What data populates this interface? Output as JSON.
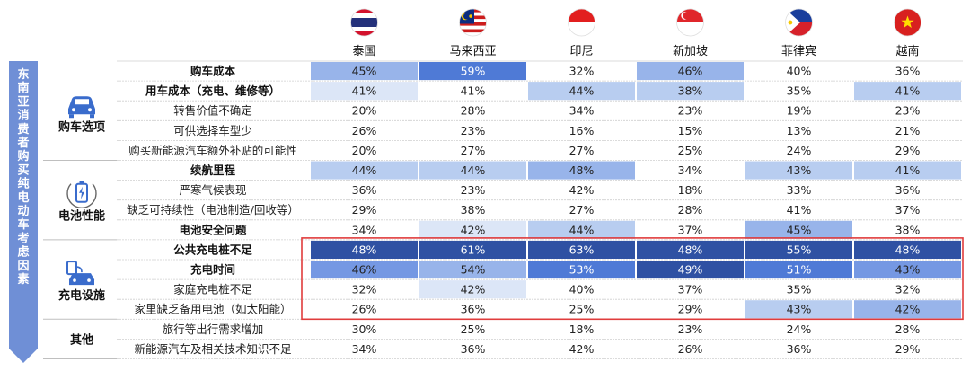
{
  "chart_data": {
    "type": "heatmap",
    "side_title": "东南亚消费者购买纯电动车考虑因素",
    "columns": [
      "泰国",
      "马来西亚",
      "印尼",
      "新加坡",
      "菲律宾",
      "越南"
    ],
    "flags": [
      "thailand-flag",
      "malaysia-flag",
      "indonesia-flag",
      "singapore-flag",
      "philippines-flag",
      "vietnam-flag"
    ],
    "categories": [
      {
        "name": "购车选项",
        "icon": "car-icon",
        "rows": [
          0,
          4
        ]
      },
      {
        "name": "电池性能",
        "icon": "battery-icon",
        "rows": [
          5,
          8
        ]
      },
      {
        "name": "充电设施",
        "icon": "charging-car-icon",
        "rows": [
          9,
          12
        ]
      },
      {
        "name": "其他",
        "icon": "",
        "rows": [
          13,
          14
        ]
      }
    ],
    "rows": [
      {
        "label": "购车成本",
        "bold": true,
        "values": [
          45,
          59,
          32,
          46,
          40,
          36
        ],
        "levels": [
          3,
          5,
          0,
          3,
          0,
          0
        ]
      },
      {
        "label": "用车成本（充电、维修等）",
        "bold": true,
        "values": [
          41,
          41,
          44,
          38,
          35,
          41
        ],
        "levels": [
          1,
          0,
          2,
          2,
          0,
          2
        ]
      },
      {
        "label": "转售价值不确定",
        "bold": false,
        "values": [
          20,
          28,
          34,
          23,
          19,
          23
        ],
        "levels": [
          0,
          0,
          0,
          0,
          0,
          0
        ]
      },
      {
        "label": "可供选择车型少",
        "bold": false,
        "values": [
          26,
          23,
          16,
          15,
          13,
          21
        ],
        "levels": [
          0,
          0,
          0,
          0,
          0,
          0
        ]
      },
      {
        "label": "购买新能源汽车额外补贴的可能性",
        "bold": false,
        "values": [
          20,
          27,
          27,
          25,
          24,
          29
        ],
        "levels": [
          0,
          0,
          0,
          0,
          0,
          0
        ]
      },
      {
        "label": "续航里程",
        "bold": true,
        "values": [
          44,
          44,
          48,
          34,
          43,
          41
        ],
        "levels": [
          2,
          2,
          3,
          0,
          2,
          2
        ]
      },
      {
        "label": "严寒气候表现",
        "bold": false,
        "values": [
          36,
          23,
          42,
          18,
          33,
          36
        ],
        "levels": [
          0,
          0,
          0,
          0,
          0,
          0
        ]
      },
      {
        "label": "缺乏可持续性（电池制造/回收等）",
        "bold": false,
        "values": [
          29,
          38,
          27,
          28,
          41,
          37
        ],
        "levels": [
          0,
          0,
          0,
          0,
          0,
          0
        ]
      },
      {
        "label": "电池安全问题",
        "bold": true,
        "values": [
          34,
          42,
          44,
          37,
          45,
          38
        ],
        "levels": [
          0,
          1,
          2,
          0,
          3,
          0
        ]
      },
      {
        "label": "公共充电桩不足",
        "bold": true,
        "values": [
          48,
          61,
          63,
          48,
          55,
          48
        ],
        "levels": [
          6,
          6,
          6,
          6,
          6,
          6
        ]
      },
      {
        "label": "充电时间",
        "bold": true,
        "values": [
          46,
          54,
          53,
          49,
          51,
          43
        ],
        "levels": [
          4,
          3,
          5,
          6,
          5,
          4
        ]
      },
      {
        "label": "家庭充电桩不足",
        "bold": false,
        "values": [
          32,
          42,
          40,
          37,
          35,
          32
        ],
        "levels": [
          0,
          1,
          0,
          0,
          0,
          0
        ]
      },
      {
        "label": "家里缺乏备用电池（如太阳能）",
        "bold": false,
        "values": [
          26,
          36,
          25,
          29,
          43,
          42
        ],
        "levels": [
          0,
          0,
          0,
          0,
          2,
          3
        ]
      },
      {
        "label": "旅行等出行需求增加",
        "bold": false,
        "values": [
          30,
          25,
          18,
          23,
          24,
          28
        ],
        "levels": [
          0,
          0,
          0,
          0,
          0,
          0
        ]
      },
      {
        "label": "新能源汽车及相关技术知识不足",
        "bold": false,
        "values": [
          34,
          36,
          42,
          26,
          36,
          29
        ],
        "levels": [
          0,
          0,
          0,
          0,
          0,
          0
        ]
      }
    ],
    "value_suffix": "%",
    "palette": [
      "#ffffff",
      "#dce6f7",
      "#b8cdf0",
      "#98b4ea",
      "#7598e3",
      "#4f7ad6",
      "#2f51a3"
    ],
    "highlight_color": "#e03c3c",
    "highlight_rows": [
      9,
      12
    ],
    "accent": "#6f8fd6"
  }
}
